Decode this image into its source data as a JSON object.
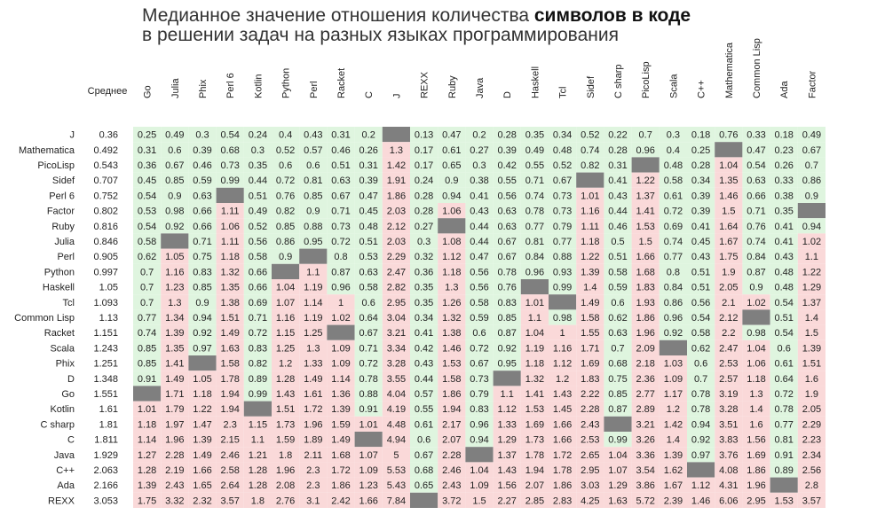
{
  "title": {
    "line1_normal": "Медианное значение отношения количества ",
    "line1_bold": "символов в коде",
    "line2": "в решении задач на разных языках программирования"
  },
  "colors": {
    "low": "#dff5df",
    "high": "#fad9d9",
    "missing": "#7f7f7f",
    "text": "#222222"
  },
  "chart_data": {
    "type": "heatmap",
    "mean_header": "Среднее",
    "columns": [
      "Go",
      "Julia",
      "Phix",
      "Perl 6",
      "Kotlin",
      "Python",
      "Perl",
      "Racket",
      "C",
      "J",
      "REXX",
      "Ruby",
      "Java",
      "D",
      "Haskell",
      "Tcl",
      "Sidef",
      "C sharp",
      "PicoLisp",
      "Scala",
      "C++",
      "Mathematica",
      "Common Lisp",
      "Ada",
      "Factor"
    ],
    "rows": [
      {
        "name": "J",
        "mean": "0.36",
        "values": [
          0.25,
          0.49,
          0.3,
          0.54,
          0.24,
          0.4,
          0.43,
          0.31,
          0.2,
          null,
          0.13,
          0.47,
          0.2,
          0.28,
          0.35,
          0.34,
          0.52,
          0.22,
          0.7,
          0.3,
          0.18,
          0.76,
          0.33,
          0.18,
          0.49
        ]
      },
      {
        "name": "Mathematica",
        "mean": "0.492",
        "values": [
          0.31,
          0.6,
          0.39,
          0.68,
          0.3,
          0.52,
          0.57,
          0.46,
          0.26,
          1.3,
          0.17,
          0.61,
          0.27,
          0.39,
          0.49,
          0.48,
          0.74,
          0.28,
          0.96,
          0.4,
          0.25,
          null,
          0.47,
          0.23,
          0.67
        ]
      },
      {
        "name": "PicoLisp",
        "mean": "0.543",
        "values": [
          0.36,
          0.67,
          0.46,
          0.73,
          0.35,
          0.6,
          0.6,
          0.51,
          0.31,
          1.42,
          0.17,
          0.65,
          0.3,
          0.42,
          0.55,
          0.52,
          0.82,
          0.31,
          null,
          0.48,
          0.28,
          1.04,
          0.54,
          0.26,
          0.7
        ]
      },
      {
        "name": "Sidef",
        "mean": "0.707",
        "values": [
          0.45,
          0.85,
          0.59,
          0.99,
          0.44,
          0.72,
          0.81,
          0.63,
          0.39,
          1.91,
          0.24,
          0.9,
          0.38,
          0.55,
          0.71,
          0.67,
          null,
          0.41,
          1.22,
          0.58,
          0.34,
          1.35,
          0.63,
          0.33,
          0.86
        ]
      },
      {
        "name": "Perl 6",
        "mean": "0.752",
        "values": [
          0.54,
          0.9,
          0.63,
          null,
          0.51,
          0.76,
          0.85,
          0.67,
          0.47,
          1.86,
          0.28,
          0.94,
          0.41,
          0.56,
          0.74,
          0.73,
          1.01,
          0.43,
          1.37,
          0.61,
          0.39,
          1.46,
          0.66,
          0.38,
          0.9
        ]
      },
      {
        "name": "Factor",
        "mean": "0.802",
        "values": [
          0.53,
          0.98,
          0.66,
          1.11,
          0.49,
          0.82,
          0.9,
          0.71,
          0.45,
          2.03,
          0.28,
          1.06,
          0.43,
          0.63,
          0.78,
          0.73,
          1.16,
          0.44,
          1.41,
          0.72,
          0.39,
          1.5,
          0.71,
          0.35,
          null
        ]
      },
      {
        "name": "Ruby",
        "mean": "0.816",
        "values": [
          0.54,
          0.92,
          0.66,
          1.06,
          0.52,
          0.85,
          0.88,
          0.73,
          0.48,
          2.12,
          0.27,
          null,
          0.44,
          0.63,
          0.77,
          0.79,
          1.11,
          0.46,
          1.53,
          0.69,
          0.41,
          1.64,
          0.76,
          0.41,
          0.94
        ]
      },
      {
        "name": "Julia",
        "mean": "0.846",
        "values": [
          0.58,
          null,
          0.71,
          1.11,
          0.56,
          0.86,
          0.95,
          0.72,
          0.51,
          2.03,
          0.3,
          1.08,
          0.44,
          0.67,
          0.81,
          0.77,
          1.18,
          0.5,
          1.5,
          0.74,
          0.45,
          1.67,
          0.74,
          0.41,
          1.02
        ]
      },
      {
        "name": "Perl",
        "mean": "0.905",
        "values": [
          0.62,
          1.05,
          0.75,
          1.18,
          0.58,
          0.9,
          null,
          0.8,
          0.53,
          2.29,
          0.32,
          1.12,
          0.47,
          0.67,
          0.84,
          0.88,
          1.22,
          0.51,
          1.66,
          0.77,
          0.43,
          1.75,
          0.84,
          0.43,
          1.1
        ]
      },
      {
        "name": "Python",
        "mean": "0.997",
        "values": [
          0.7,
          1.16,
          0.83,
          1.32,
          0.66,
          null,
          1.1,
          0.87,
          0.63,
          2.47,
          0.36,
          1.18,
          0.56,
          0.78,
          0.96,
          0.93,
          1.39,
          0.58,
          1.68,
          0.8,
          0.51,
          1.9,
          0.87,
          0.48,
          1.22
        ]
      },
      {
        "name": "Haskell",
        "mean": "1.05",
        "values": [
          0.7,
          1.23,
          0.85,
          1.35,
          0.66,
          1.04,
          1.19,
          0.96,
          0.58,
          2.82,
          0.35,
          1.3,
          0.56,
          0.76,
          null,
          0.99,
          1.4,
          0.59,
          1.83,
          0.84,
          0.51,
          2.05,
          0.9,
          0.48,
          1.29
        ]
      },
      {
        "name": "Tcl",
        "mean": "1.093",
        "values": [
          0.7,
          1.3,
          0.9,
          1.38,
          0.69,
          1.07,
          1.14,
          1.0,
          0.6,
          2.95,
          0.35,
          1.26,
          0.58,
          0.83,
          1.01,
          null,
          1.49,
          0.6,
          1.93,
          0.86,
          0.56,
          2.1,
          1.02,
          0.54,
          1.37
        ]
      },
      {
        "name": "Common Lisp",
        "mean": "1.13",
        "values": [
          0.77,
          1.34,
          0.94,
          1.51,
          0.71,
          1.16,
          1.19,
          1.02,
          0.64,
          3.04,
          0.34,
          1.32,
          0.59,
          0.85,
          1.1,
          0.98,
          1.58,
          0.62,
          1.86,
          0.96,
          0.54,
          2.12,
          null,
          0.51,
          1.4
        ]
      },
      {
        "name": "Racket",
        "mean": "1.151",
        "values": [
          0.74,
          1.39,
          0.92,
          1.49,
          0.72,
          1.15,
          1.25,
          null,
          0.67,
          3.21,
          0.41,
          1.38,
          0.6,
          0.87,
          1.04,
          1.0,
          1.55,
          0.63,
          1.96,
          0.92,
          0.58,
          2.2,
          0.98,
          0.54,
          1.5
        ]
      },
      {
        "name": "Scala",
        "mean": "1.243",
        "values": [
          0.85,
          1.35,
          0.97,
          1.63,
          0.83,
          1.25,
          1.3,
          1.09,
          0.71,
          3.34,
          0.42,
          1.46,
          0.72,
          0.92,
          1.19,
          1.16,
          1.71,
          0.7,
          2.09,
          null,
          0.62,
          2.47,
          1.04,
          0.6,
          1.39
        ]
      },
      {
        "name": "Phix",
        "mean": "1.251",
        "values": [
          0.85,
          1.41,
          null,
          1.58,
          0.82,
          1.2,
          1.33,
          1.09,
          0.72,
          3.28,
          0.43,
          1.53,
          0.67,
          0.95,
          1.18,
          1.12,
          1.69,
          0.68,
          2.18,
          1.03,
          0.6,
          2.53,
          1.06,
          0.61,
          1.51
        ]
      },
      {
        "name": "D",
        "mean": "1.348",
        "values": [
          0.91,
          1.49,
          1.05,
          1.78,
          0.89,
          1.28,
          1.49,
          1.14,
          0.78,
          3.55,
          0.44,
          1.58,
          0.73,
          null,
          1.32,
          1.2,
          1.83,
          0.75,
          2.36,
          1.09,
          0.7,
          2.57,
          1.18,
          0.64,
          1.6
        ]
      },
      {
        "name": "Go",
        "mean": "1.551",
        "values": [
          null,
          1.71,
          1.18,
          1.94,
          0.99,
          1.43,
          1.61,
          1.36,
          0.88,
          4.04,
          0.57,
          1.86,
          0.79,
          1.1,
          1.41,
          1.43,
          2.22,
          0.85,
          2.77,
          1.17,
          0.78,
          3.19,
          1.3,
          0.72,
          1.9
        ]
      },
      {
        "name": "Kotlin",
        "mean": "1.61",
        "values": [
          1.01,
          1.79,
          1.22,
          1.94,
          null,
          1.51,
          1.72,
          1.39,
          0.91,
          4.19,
          0.55,
          1.94,
          0.83,
          1.12,
          1.53,
          1.45,
          2.28,
          0.87,
          2.89,
          1.2,
          0.78,
          3.28,
          1.4,
          0.78,
          2.05
        ]
      },
      {
        "name": "C sharp",
        "mean": "1.81",
        "values": [
          1.18,
          1.97,
          1.47,
          2.3,
          1.15,
          1.73,
          1.96,
          1.59,
          1.01,
          4.48,
          0.61,
          2.17,
          0.96,
          1.33,
          1.69,
          1.66,
          2.43,
          null,
          3.21,
          1.42,
          0.94,
          3.51,
          1.6,
          0.77,
          2.29
        ]
      },
      {
        "name": "C",
        "mean": "1.811",
        "values": [
          1.14,
          1.96,
          1.39,
          2.15,
          1.1,
          1.59,
          1.89,
          1.49,
          null,
          4.94,
          0.6,
          2.07,
          0.94,
          1.29,
          1.73,
          1.66,
          2.53,
          0.99,
          3.26,
          1.4,
          0.92,
          3.83,
          1.56,
          0.81,
          2.23
        ]
      },
      {
        "name": "Java",
        "mean": "1.929",
        "values": [
          1.27,
          2.28,
          1.49,
          2.46,
          1.21,
          1.8,
          2.11,
          1.68,
          1.07,
          5.0,
          0.67,
          2.28,
          null,
          1.37,
          1.78,
          1.72,
          2.65,
          1.04,
          3.36,
          1.39,
          0.97,
          3.76,
          1.69,
          0.91,
          2.34
        ]
      },
      {
        "name": "C++",
        "mean": "2.063",
        "values": [
          1.28,
          2.19,
          1.66,
          2.58,
          1.28,
          1.96,
          2.3,
          1.72,
          1.09,
          5.53,
          0.68,
          2.46,
          1.04,
          1.43,
          1.94,
          1.78,
          2.95,
          1.07,
          3.54,
          1.62,
          null,
          4.08,
          1.86,
          0.89,
          2.56
        ]
      },
      {
        "name": "Ada",
        "mean": "2.166",
        "values": [
          1.39,
          2.43,
          1.65,
          2.64,
          1.28,
          2.08,
          2.3,
          1.86,
          1.23,
          5.43,
          0.65,
          2.43,
          1.09,
          1.56,
          2.07,
          1.86,
          3.03,
          1.29,
          3.86,
          1.67,
          1.12,
          4.31,
          1.96,
          null,
          2.8
        ]
      },
      {
        "name": "REXX",
        "mean": "3.053",
        "values": [
          1.75,
          3.32,
          2.32,
          3.57,
          1.8,
          2.76,
          3.1,
          2.42,
          1.66,
          7.84,
          null,
          3.72,
          1.5,
          2.27,
          2.85,
          2.83,
          4.25,
          1.63,
          5.72,
          2.39,
          1.46,
          6.06,
          2.95,
          1.53,
          3.57
        ]
      }
    ]
  }
}
